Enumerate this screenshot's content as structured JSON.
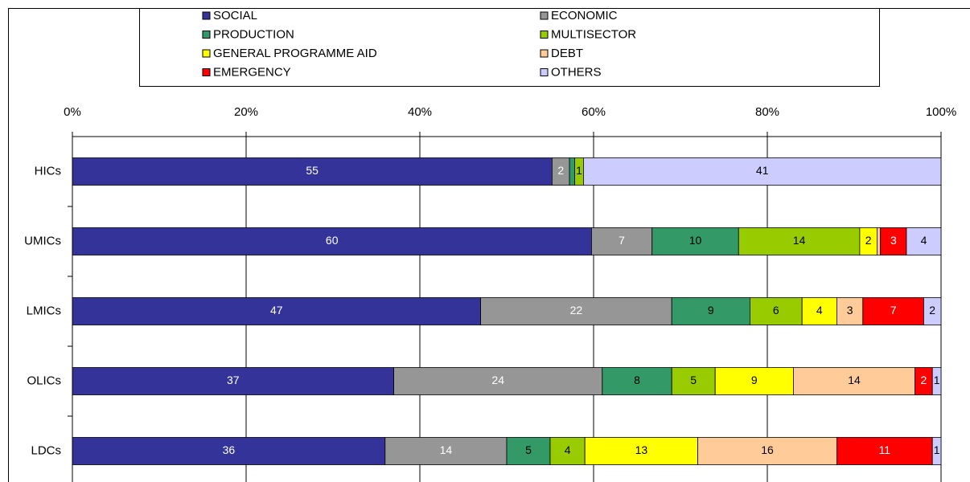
{
  "chart_data": {
    "type": "stacked_bar_100",
    "orientation": "horizontal",
    "categories": [
      "HICs",
      "UMICs",
      "LMICs",
      "OLICs",
      "LDCs"
    ],
    "series": [
      {
        "name": "SOCIAL",
        "color": "#333399",
        "label_color": "#ffffff",
        "values": [
          55,
          60,
          47,
          37,
          36
        ]
      },
      {
        "name": "ECONOMIC",
        "color": "#969696",
        "label_color": "#ffffff",
        "values": [
          2,
          7,
          22,
          24,
          14
        ]
      },
      {
        "name": "PRODUCTION",
        "color": "#339966",
        "label_color": "#000000",
        "values": [
          0.6,
          10,
          9,
          8,
          5
        ]
      },
      {
        "name": "MULTISECTOR",
        "color": "#99cc00",
        "label_color": "#000000",
        "values": [
          1,
          14,
          6,
          5,
          4
        ]
      },
      {
        "name": "GENERAL PROGRAMME AID",
        "color": "#ffff00",
        "label_color": "#000000",
        "values": [
          0,
          2,
          4,
          9,
          13
        ]
      },
      {
        "name": "DEBT",
        "color": "#ffcc99",
        "label_color": "#000000",
        "values": [
          0,
          0.4,
          3,
          14,
          16
        ]
      },
      {
        "name": "EMERGENCY",
        "color": "#ff0000",
        "label_color": "#ffffff",
        "values": [
          0,
          3,
          7,
          2,
          11
        ]
      },
      {
        "name": "OTHERS",
        "color": "#ccccff",
        "label_color": "#000000",
        "values": [
          41,
          4,
          2,
          1,
          1
        ]
      }
    ],
    "xlim": [
      0,
      100
    ],
    "xticks": [
      {
        "value": 0,
        "label": "0%"
      },
      {
        "value": 20,
        "label": "20%"
      },
      {
        "value": 40,
        "label": "40%"
      },
      {
        "value": 60,
        "label": "60%"
      },
      {
        "value": 80,
        "label": "80%"
      },
      {
        "value": 100,
        "label": "100%"
      }
    ],
    "grid": true,
    "legend": "top"
  }
}
